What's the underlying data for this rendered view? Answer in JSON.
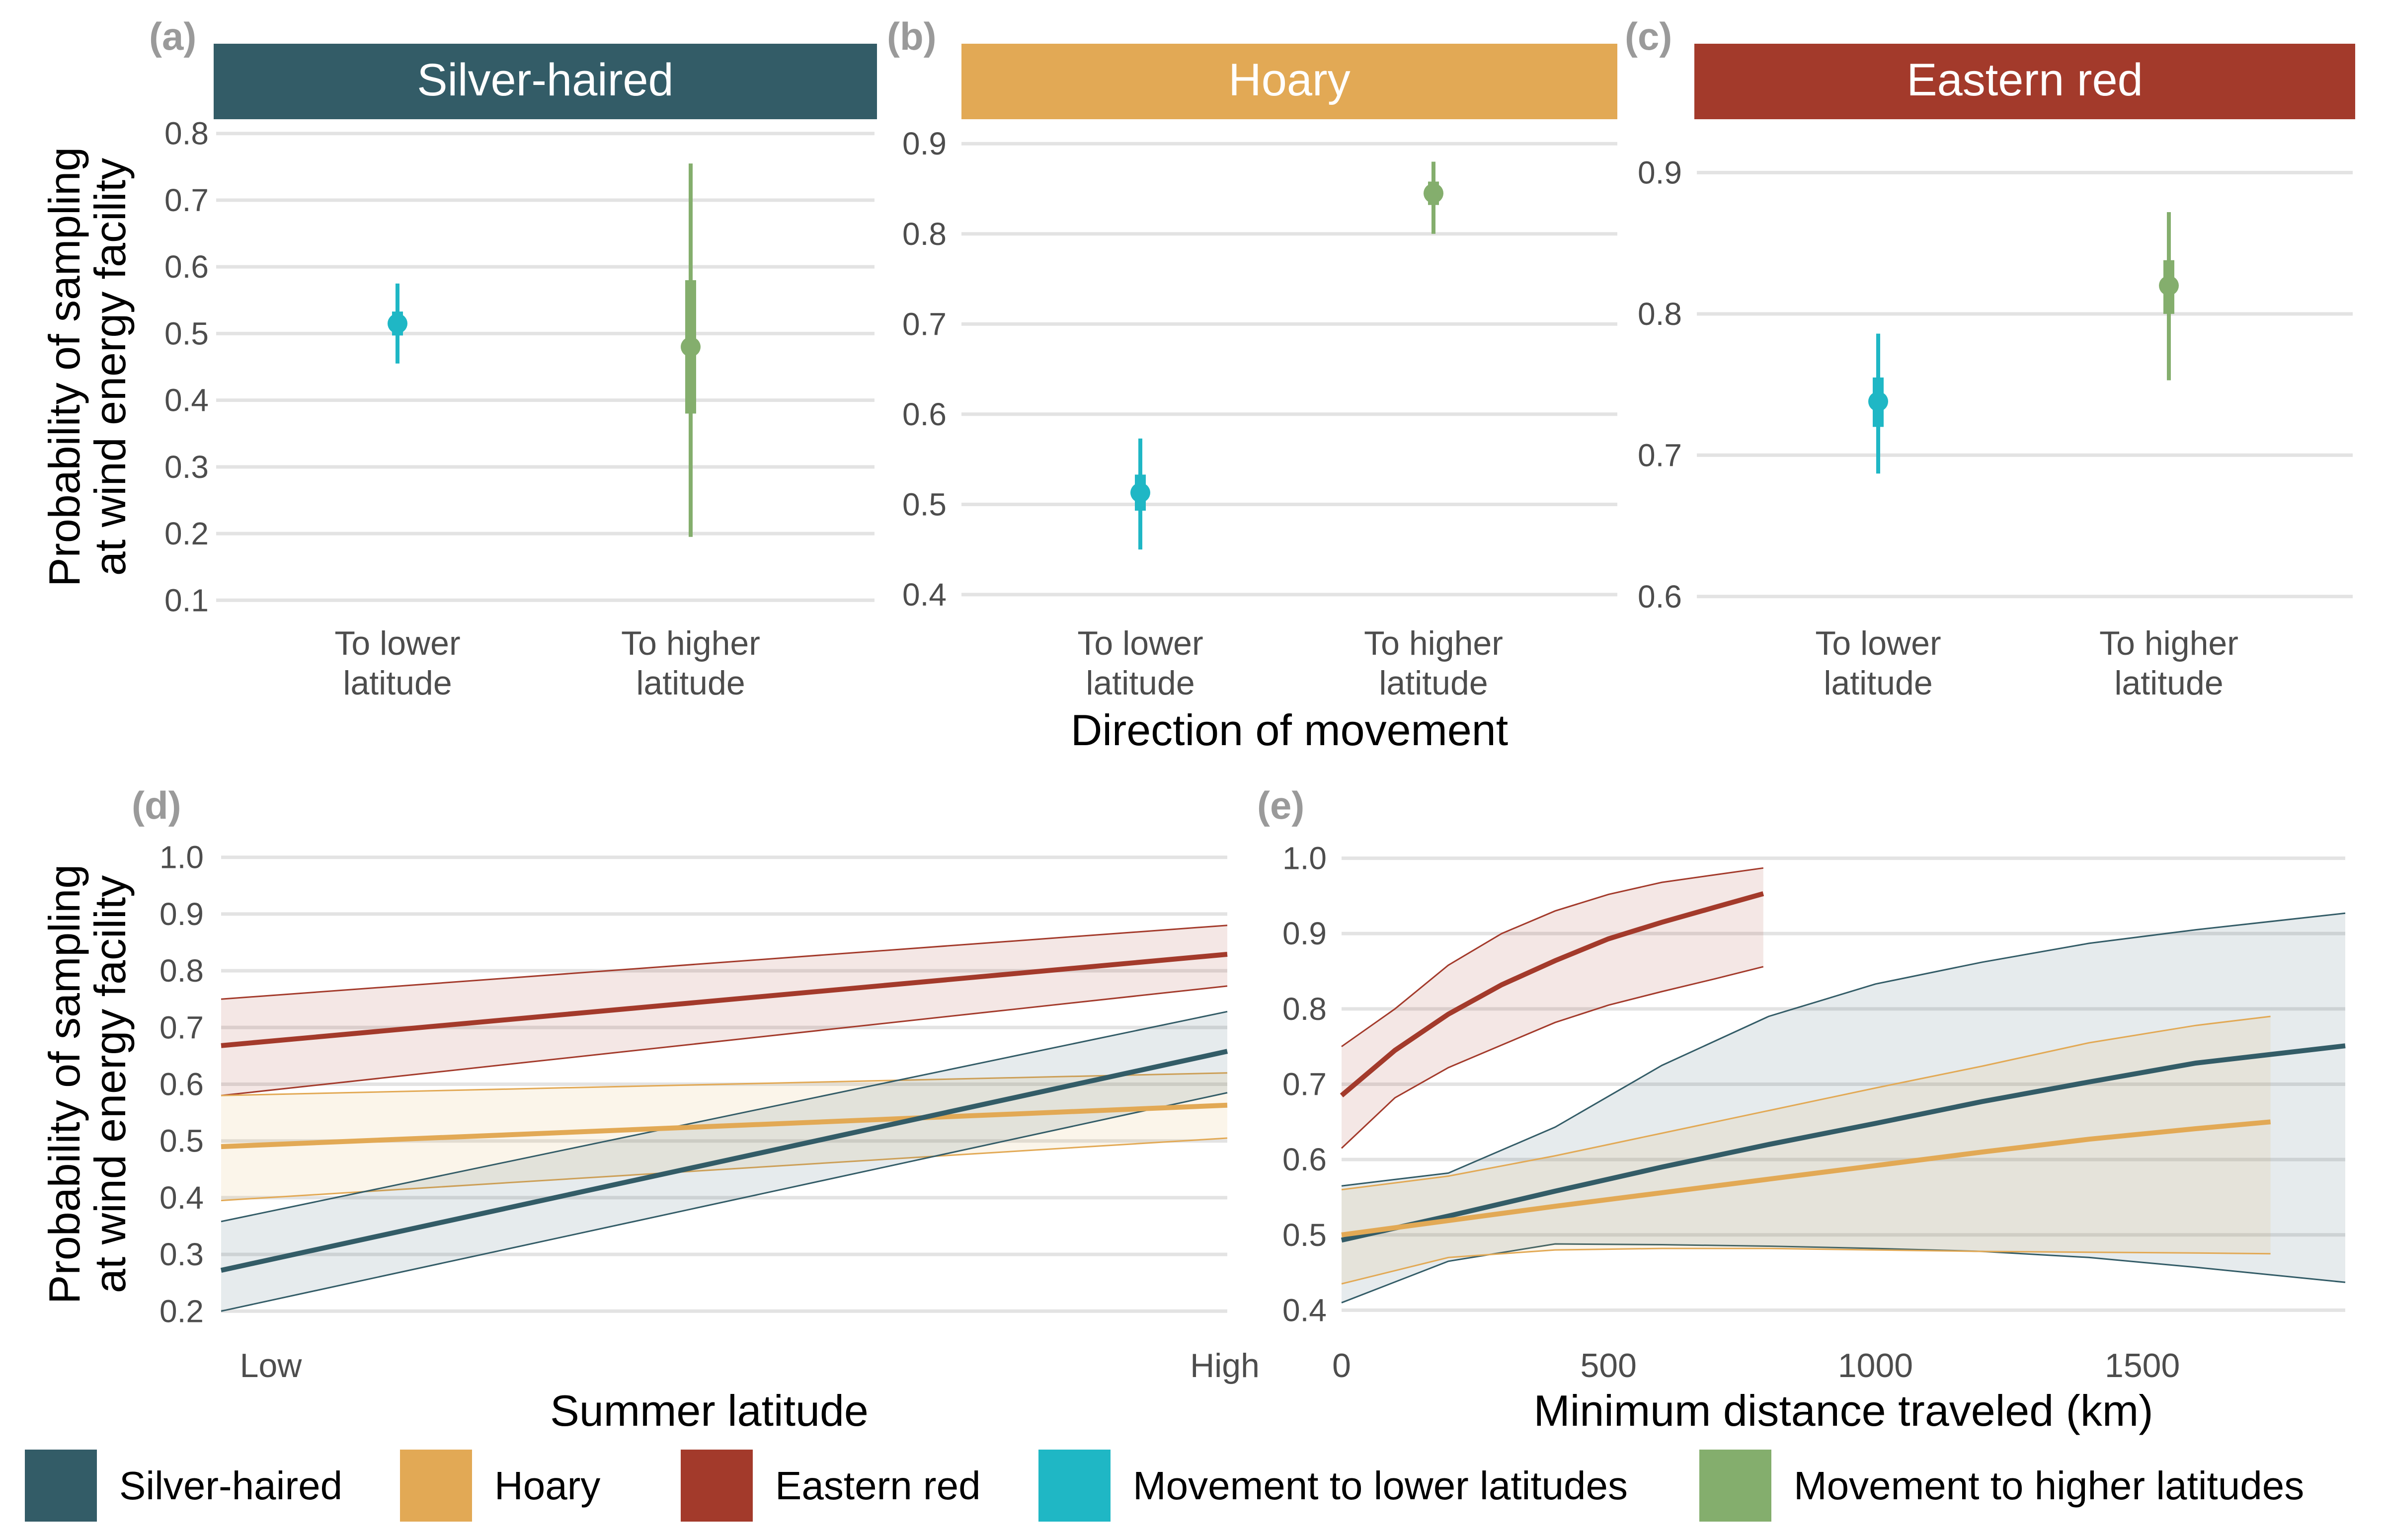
{
  "colors": {
    "silver": "#335c67",
    "hoary": "#e2a955",
    "eastern": "#a33a2b",
    "lower": "#1fb7c5",
    "higher": "#84ae6d",
    "grid": "#e3e3e3",
    "tick": "#4d4d4d",
    "panel_tag": "#9a9a9a"
  },
  "chart_data": [
    {
      "id": "a",
      "type": "scatter",
      "tag": "(a)",
      "title": "Silver-haired",
      "title_color": "silver",
      "ylabel": [
        "Probability of sampling",
        "at wind energy facility"
      ],
      "categories": [
        "To lower\nlatitude",
        "To higher\nlatitude"
      ],
      "yticks": [
        0.1,
        0.2,
        0.3,
        0.4,
        0.5,
        0.6,
        0.7,
        0.8
      ],
      "ylim": [
        0.095,
        0.805
      ],
      "points": [
        {
          "x": 0,
          "y": 0.515,
          "lo": 0.455,
          "hi": 0.575,
          "lo_inner": 0.497,
          "hi_inner": 0.533,
          "color": "lower"
        },
        {
          "x": 1,
          "y": 0.48,
          "lo": 0.195,
          "hi": 0.755,
          "lo_inner": 0.38,
          "hi_inner": 0.58,
          "color": "higher"
        }
      ]
    },
    {
      "id": "b",
      "type": "scatter",
      "tag": "(b)",
      "title": "Hoary",
      "title_color": "hoary",
      "xlabel": "Direction of movement",
      "categories": [
        "To lower\nlatitude",
        "To higher\nlatitude"
      ],
      "yticks": [
        0.4,
        0.5,
        0.6,
        0.7,
        0.8,
        0.9
      ],
      "ylim": [
        0.39,
        0.915
      ],
      "points": [
        {
          "x": 0,
          "y": 0.513,
          "lo": 0.45,
          "hi": 0.573,
          "lo_inner": 0.493,
          "hi_inner": 0.533,
          "color": "lower"
        },
        {
          "x": 1,
          "y": 0.845,
          "lo": 0.8,
          "hi": 0.88,
          "lo_inner": 0.832,
          "hi_inner": 0.858,
          "color": "higher"
        }
      ]
    },
    {
      "id": "c",
      "type": "scatter",
      "tag": "(c)",
      "title": "Eastern red",
      "title_color": "eastern",
      "categories": [
        "To lower\nlatitude",
        "To higher\nlatitude"
      ],
      "yticks": [
        0.6,
        0.7,
        0.8,
        0.9
      ],
      "ylim": [
        0.595,
        0.93
      ],
      "points": [
        {
          "x": 0,
          "y": 0.738,
          "lo": 0.687,
          "hi": 0.786,
          "lo_inner": 0.72,
          "hi_inner": 0.755,
          "color": "lower"
        },
        {
          "x": 1,
          "y": 0.82,
          "lo": 0.753,
          "hi": 0.872,
          "lo_inner": 0.8,
          "hi_inner": 0.838,
          "color": "higher"
        }
      ]
    },
    {
      "id": "d",
      "type": "line",
      "tag": "(d)",
      "ylabel": [
        "Probability of sampling",
        "at wind energy facility"
      ],
      "xlabel": "Summer latitude",
      "x_ticklabels": [
        "Low",
        "High"
      ],
      "yticks": [
        0.2,
        0.3,
        0.4,
        0.5,
        0.6,
        0.7,
        0.8,
        0.9,
        1.0
      ],
      "ylim": [
        0.195,
        1.005
      ],
      "xlim": [
        0,
        1
      ],
      "series": [
        {
          "color": "eastern",
          "x": [
            0,
            1
          ],
          "y": [
            0.668,
            0.829
          ],
          "lower": [
            0.58,
            0.773
          ],
          "upper": [
            0.75,
            0.88
          ]
        },
        {
          "color": "hoary",
          "x": [
            0,
            1
          ],
          "y": [
            0.49,
            0.563
          ],
          "lower": [
            0.395,
            0.505
          ],
          "upper": [
            0.58,
            0.62
          ]
        },
        {
          "color": "silver",
          "x": [
            0,
            1
          ],
          "y": [
            0.272,
            0.658
          ],
          "lower": [
            0.2,
            0.585
          ],
          "upper": [
            0.358,
            0.728
          ]
        }
      ]
    },
    {
      "id": "e",
      "type": "line",
      "tag": "(e)",
      "xlabel": "Minimum distance traveled (km)",
      "x_ticklabels": [
        "0",
        "500",
        "1000",
        "1500"
      ],
      "xticks": [
        0,
        500,
        1000,
        1500
      ],
      "xlim": [
        0,
        1880
      ],
      "yticks": [
        0.4,
        0.5,
        0.6,
        0.7,
        0.8,
        0.9,
        1.0
      ],
      "ylim": [
        0.395,
        1.005
      ],
      "series": [
        {
          "color": "silver",
          "x": [
            0,
            200,
            400,
            600,
            800,
            1000,
            1200,
            1400,
            1600,
            1880
          ],
          "y": [
            0.493,
            0.525,
            0.558,
            0.59,
            0.62,
            0.648,
            0.677,
            0.703,
            0.728,
            0.751
          ],
          "lower": [
            0.41,
            0.465,
            0.488,
            0.487,
            0.485,
            0.482,
            0.478,
            0.47,
            0.457,
            0.437
          ],
          "upper": [
            0.565,
            0.582,
            0.643,
            0.725,
            0.79,
            0.833,
            0.862,
            0.887,
            0.905,
            0.927
          ]
        },
        {
          "color": "hoary",
          "x": [
            0,
            200,
            400,
            600,
            800,
            1000,
            1200,
            1400,
            1600,
            1740
          ],
          "y": [
            0.5,
            0.519,
            0.538,
            0.556,
            0.574,
            0.592,
            0.61,
            0.627,
            0.641,
            0.65
          ],
          "lower": [
            0.435,
            0.47,
            0.48,
            0.482,
            0.482,
            0.48,
            0.478,
            0.477,
            0.476,
            0.475
          ],
          "upper": [
            0.56,
            0.578,
            0.605,
            0.635,
            0.665,
            0.695,
            0.724,
            0.755,
            0.778,
            0.79
          ]
        },
        {
          "color": "eastern",
          "x": [
            0,
            100,
            200,
            300,
            400,
            500,
            600,
            700,
            790
          ],
          "y": [
            0.685,
            0.745,
            0.793,
            0.832,
            0.864,
            0.893,
            0.915,
            0.935,
            0.953
          ],
          "lower": [
            0.615,
            0.682,
            0.722,
            0.752,
            0.782,
            0.805,
            0.823,
            0.84,
            0.856
          ],
          "upper": [
            0.75,
            0.8,
            0.858,
            0.9,
            0.93,
            0.952,
            0.968,
            0.978,
            0.987
          ]
        }
      ]
    }
  ],
  "legend": [
    {
      "label": "Silver-haired",
      "color": "silver"
    },
    {
      "label": "Hoary",
      "color": "hoary"
    },
    {
      "label": "Eastern red",
      "color": "eastern"
    },
    {
      "label": "Movement to lower latitudes",
      "color": "lower"
    },
    {
      "label": "Movement to higher latitudes",
      "color": "higher"
    }
  ]
}
